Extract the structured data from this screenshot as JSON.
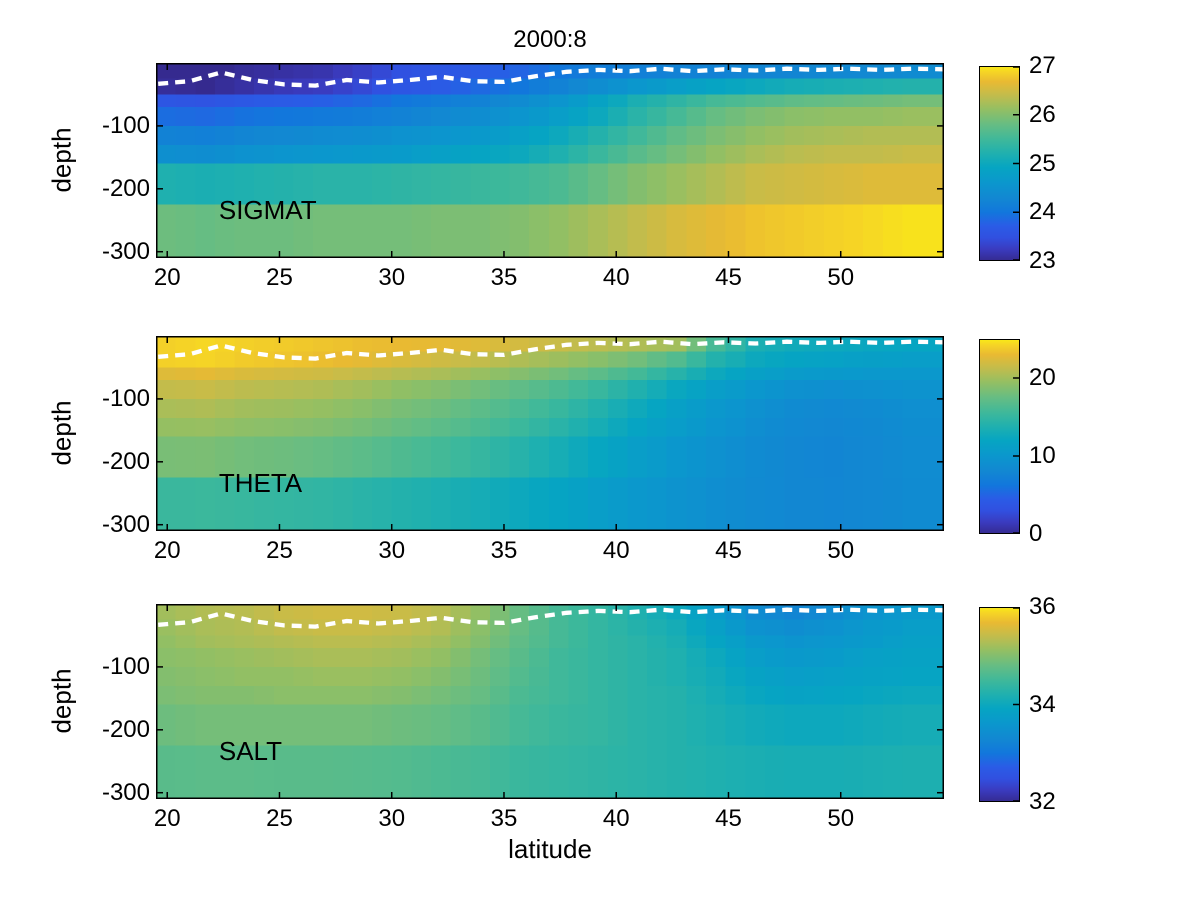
{
  "title": "2000:8",
  "xlabel": "latitude",
  "ylabel": "depth",
  "colors": {
    "background": "#ffffff",
    "axis": "#000000",
    "mld_line": "#ffffff",
    "parula_stops": [
      [
        0.0,
        "#352a8f"
      ],
      [
        0.06,
        "#3a3bbf"
      ],
      [
        0.12,
        "#3150e0"
      ],
      [
        0.18,
        "#2a5ce6"
      ],
      [
        0.25,
        "#1277dc"
      ],
      [
        0.32,
        "#1287d2"
      ],
      [
        0.4,
        "#0b97cd"
      ],
      [
        0.48,
        "#06a5c2"
      ],
      [
        0.55,
        "#1fb0af"
      ],
      [
        0.62,
        "#3db89b"
      ],
      [
        0.7,
        "#66bd83"
      ],
      [
        0.78,
        "#95bf62"
      ],
      [
        0.85,
        "#c2bc4c"
      ],
      [
        0.92,
        "#e9ba32"
      ],
      [
        0.97,
        "#f6d525"
      ],
      [
        1.0,
        "#f9ec16"
      ]
    ]
  },
  "axes": {
    "x_ticks": [
      20,
      25,
      30,
      35,
      40,
      45,
      50
    ],
    "y_ticks": [
      -100,
      -200,
      -300
    ],
    "x_range": [
      19.5,
      54.6
    ],
    "y_range": [
      0,
      -310
    ]
  },
  "mld_line": {
    "style": "white dashed",
    "points": [
      [
        19.6,
        -33
      ],
      [
        21,
        -29
      ],
      [
        22.4,
        -15
      ],
      [
        23.8,
        -27
      ],
      [
        25.2,
        -34
      ],
      [
        26.6,
        -36
      ],
      [
        28,
        -27
      ],
      [
        29.4,
        -31
      ],
      [
        30.8,
        -27
      ],
      [
        32.2,
        -22
      ],
      [
        33.6,
        -29
      ],
      [
        35,
        -30
      ],
      [
        36.4,
        -21
      ],
      [
        37.8,
        -14
      ],
      [
        39.2,
        -11
      ],
      [
        40.6,
        -13
      ],
      [
        42,
        -9
      ],
      [
        43.4,
        -13
      ],
      [
        44.8,
        -10
      ],
      [
        46.2,
        -12
      ],
      [
        47.6,
        -9
      ],
      [
        49,
        -11
      ],
      [
        50.4,
        -9
      ],
      [
        51.8,
        -11
      ],
      [
        53.2,
        -9
      ],
      [
        54.6,
        -10
      ]
    ]
  },
  "chart_data": [
    {
      "type": "heatmap",
      "name": "sigmat",
      "label": "SIGMAT",
      "colorbar": {
        "min": 23,
        "max": 27,
        "ticks": [
          27,
          26,
          25,
          24,
          23
        ]
      },
      "lat_edges": [
        19.5,
        21.25,
        23,
        24.75,
        26.5,
        28.25,
        30,
        31.75,
        33.5,
        35.25,
        37,
        38.75,
        40.5,
        42.25,
        44,
        45.75,
        47.5,
        49.25,
        51,
        52.75,
        54.6
      ],
      "depth_edges": [
        0,
        -25,
        -50,
        -70,
        -100,
        -130,
        -160,
        -225,
        -310
      ],
      "values": [
        [
          23.0,
          22.95,
          23.05,
          23.1,
          23.15,
          23.3,
          23.5,
          23.6,
          23.7,
          23.8,
          24.0,
          24.1,
          24.15,
          24.2,
          24.2,
          24.25,
          24.25,
          24.3,
          24.3,
          24.35
        ],
        [
          23.05,
          23.0,
          23.1,
          23.2,
          23.25,
          23.4,
          23.6,
          23.7,
          23.85,
          24.0,
          24.2,
          24.4,
          24.6,
          24.75,
          24.9,
          25.0,
          25.1,
          25.15,
          25.2,
          25.25
        ],
        [
          23.6,
          23.55,
          23.65,
          23.7,
          23.75,
          23.85,
          24.0,
          24.1,
          24.2,
          24.35,
          24.55,
          24.85,
          25.15,
          25.35,
          25.55,
          25.65,
          25.75,
          25.8,
          25.85,
          25.9
        ],
        [
          23.9,
          23.85,
          23.95,
          24.0,
          24.05,
          24.1,
          24.2,
          24.3,
          24.4,
          24.55,
          24.75,
          25.0,
          25.3,
          25.55,
          25.8,
          25.95,
          26.05,
          26.1,
          26.1,
          26.15
        ],
        [
          24.2,
          24.15,
          24.25,
          24.3,
          24.35,
          24.4,
          24.5,
          24.55,
          24.65,
          24.8,
          25.0,
          25.25,
          25.5,
          25.75,
          25.95,
          26.1,
          26.2,
          26.25,
          26.3,
          26.3
        ],
        [
          24.45,
          24.4,
          24.5,
          24.55,
          24.6,
          24.65,
          24.7,
          24.8,
          24.9,
          25.0,
          25.2,
          25.45,
          25.7,
          25.9,
          26.1,
          26.25,
          26.35,
          26.4,
          26.4,
          26.45
        ],
        [
          25.2,
          25.15,
          25.2,
          25.25,
          25.3,
          25.3,
          25.35,
          25.4,
          25.45,
          25.5,
          25.6,
          25.8,
          26.0,
          26.15,
          26.3,
          26.45,
          26.5,
          26.55,
          26.6,
          26.6
        ],
        [
          25.85,
          25.8,
          25.85,
          25.85,
          25.9,
          25.9,
          25.9,
          25.95,
          25.95,
          26.0,
          26.1,
          26.25,
          26.4,
          26.55,
          26.65,
          26.75,
          26.8,
          26.85,
          26.9,
          26.95
        ]
      ]
    },
    {
      "type": "heatmap",
      "name": "theta",
      "label": "THETA",
      "colorbar": {
        "min": 0,
        "max": 25,
        "ticks": [
          20,
          10,
          0
        ]
      },
      "lat_edges": [
        19.5,
        21.25,
        23,
        24.75,
        26.5,
        28.25,
        30,
        31.75,
        33.5,
        35.25,
        37,
        38.75,
        40.5,
        42.25,
        44,
        45.75,
        47.5,
        49.25,
        51,
        52.75,
        54.6
      ],
      "depth_edges": [
        0,
        -25,
        -50,
        -70,
        -100,
        -130,
        -160,
        -225,
        -310
      ],
      "values": [
        [
          24.0,
          24.3,
          24.0,
          23.8,
          23.5,
          23.2,
          23.0,
          22.8,
          22.5,
          22.0,
          21.5,
          21.0,
          20.5,
          20.0,
          16.0,
          13.5,
          12.8,
          12.5,
          12.2,
          12.0
        ],
        [
          24.0,
          24.2,
          23.8,
          23.5,
          23.2,
          22.8,
          22.3,
          21.8,
          21.3,
          20.5,
          19.8,
          19.0,
          18.0,
          16.5,
          14.0,
          12.5,
          11.8,
          11.5,
          11.2,
          11.0
        ],
        [
          22.5,
          22.8,
          22.3,
          22.0,
          21.8,
          21.3,
          20.8,
          20.3,
          19.6,
          18.8,
          18.0,
          17.0,
          15.8,
          14.2,
          12.5,
          11.3,
          10.6,
          10.3,
          10.2,
          10.2
        ],
        [
          21.3,
          21.5,
          21.0,
          20.8,
          20.5,
          20.0,
          19.3,
          18.8,
          18.0,
          17.2,
          16.3,
          15.2,
          13.8,
          12.3,
          11.0,
          10.0,
          9.2,
          9.0,
          9.2,
          9.5
        ],
        [
          20.3,
          20.5,
          20.0,
          19.8,
          19.5,
          19.0,
          18.3,
          17.8,
          17.0,
          16.2,
          15.2,
          14.0,
          12.6,
          11.3,
          10.2,
          9.2,
          8.5,
          8.2,
          8.5,
          9.0
        ],
        [
          19.5,
          19.6,
          19.2,
          19.0,
          18.7,
          18.2,
          17.6,
          17.0,
          16.3,
          15.4,
          14.4,
          13.2,
          11.9,
          10.8,
          9.8,
          8.9,
          8.2,
          8.0,
          8.3,
          8.8
        ],
        [
          18.3,
          18.4,
          18.0,
          17.8,
          17.5,
          17.0,
          16.4,
          15.8,
          15.1,
          14.2,
          13.2,
          12.1,
          11.0,
          10.0,
          9.2,
          8.5,
          8.0,
          7.8,
          8.1,
          8.6
        ],
        [
          15.3,
          15.4,
          15.2,
          15.0,
          14.8,
          14.4,
          14.0,
          13.6,
          13.1,
          12.5,
          11.8,
          11.0,
          10.2,
          9.5,
          8.9,
          8.4,
          8.0,
          7.9,
          8.1,
          8.5
        ]
      ]
    },
    {
      "type": "heatmap",
      "name": "salt",
      "label": "SALT",
      "colorbar": {
        "min": 32,
        "max": 36,
        "ticks": [
          36,
          34,
          32
        ]
      },
      "lat_edges": [
        19.5,
        21.25,
        23,
        24.75,
        26.5,
        28.25,
        30,
        31.75,
        33.5,
        35.25,
        37,
        38.75,
        40.5,
        42.25,
        44,
        45.75,
        47.5,
        49.25,
        51,
        52.75,
        54.6
      ],
      "depth_edges": [
        0,
        -25,
        -50,
        -70,
        -100,
        -130,
        -160,
        -225,
        -310
      ],
      "values": [
        [
          35.2,
          35.3,
          35.35,
          35.45,
          35.5,
          35.5,
          35.45,
          35.35,
          35.1,
          34.8,
          34.55,
          34.4,
          34.2,
          34.0,
          33.7,
          33.35,
          33.25,
          33.35,
          33.55,
          33.65
        ],
        [
          35.15,
          35.25,
          35.3,
          35.4,
          35.45,
          35.45,
          35.4,
          35.3,
          35.05,
          34.8,
          34.55,
          34.4,
          34.25,
          34.1,
          33.8,
          33.5,
          33.4,
          33.5,
          33.65,
          33.75
        ],
        [
          35.1,
          35.2,
          35.25,
          35.3,
          35.35,
          35.35,
          35.3,
          35.2,
          35.0,
          34.75,
          34.55,
          34.4,
          34.3,
          34.15,
          33.9,
          33.65,
          33.55,
          33.6,
          33.7,
          33.8
        ],
        [
          35.05,
          35.1,
          35.15,
          35.2,
          35.25,
          35.25,
          35.2,
          35.1,
          34.9,
          34.7,
          34.5,
          34.4,
          34.3,
          34.2,
          34.0,
          33.75,
          33.65,
          33.7,
          33.8,
          33.85
        ],
        [
          35.0,
          35.05,
          35.1,
          35.1,
          35.15,
          35.15,
          35.1,
          35.0,
          34.85,
          34.65,
          34.5,
          34.4,
          34.3,
          34.2,
          34.05,
          33.85,
          33.75,
          33.8,
          33.85,
          33.9
        ],
        [
          34.95,
          35.0,
          35.0,
          35.05,
          35.05,
          35.05,
          35.0,
          34.9,
          34.8,
          34.6,
          34.5,
          34.4,
          34.3,
          34.25,
          34.1,
          33.95,
          33.85,
          33.9,
          33.95,
          34.0
        ],
        [
          34.85,
          34.9,
          34.9,
          34.9,
          34.9,
          34.9,
          34.85,
          34.8,
          34.7,
          34.55,
          34.45,
          34.4,
          34.3,
          34.25,
          34.15,
          34.05,
          34.0,
          34.0,
          34.05,
          34.1
        ],
        [
          34.7,
          34.72,
          34.72,
          34.7,
          34.7,
          34.68,
          34.65,
          34.6,
          34.55,
          34.45,
          34.4,
          34.35,
          34.3,
          34.25,
          34.2,
          34.15,
          34.12,
          34.12,
          34.15,
          34.18
        ]
      ]
    }
  ]
}
